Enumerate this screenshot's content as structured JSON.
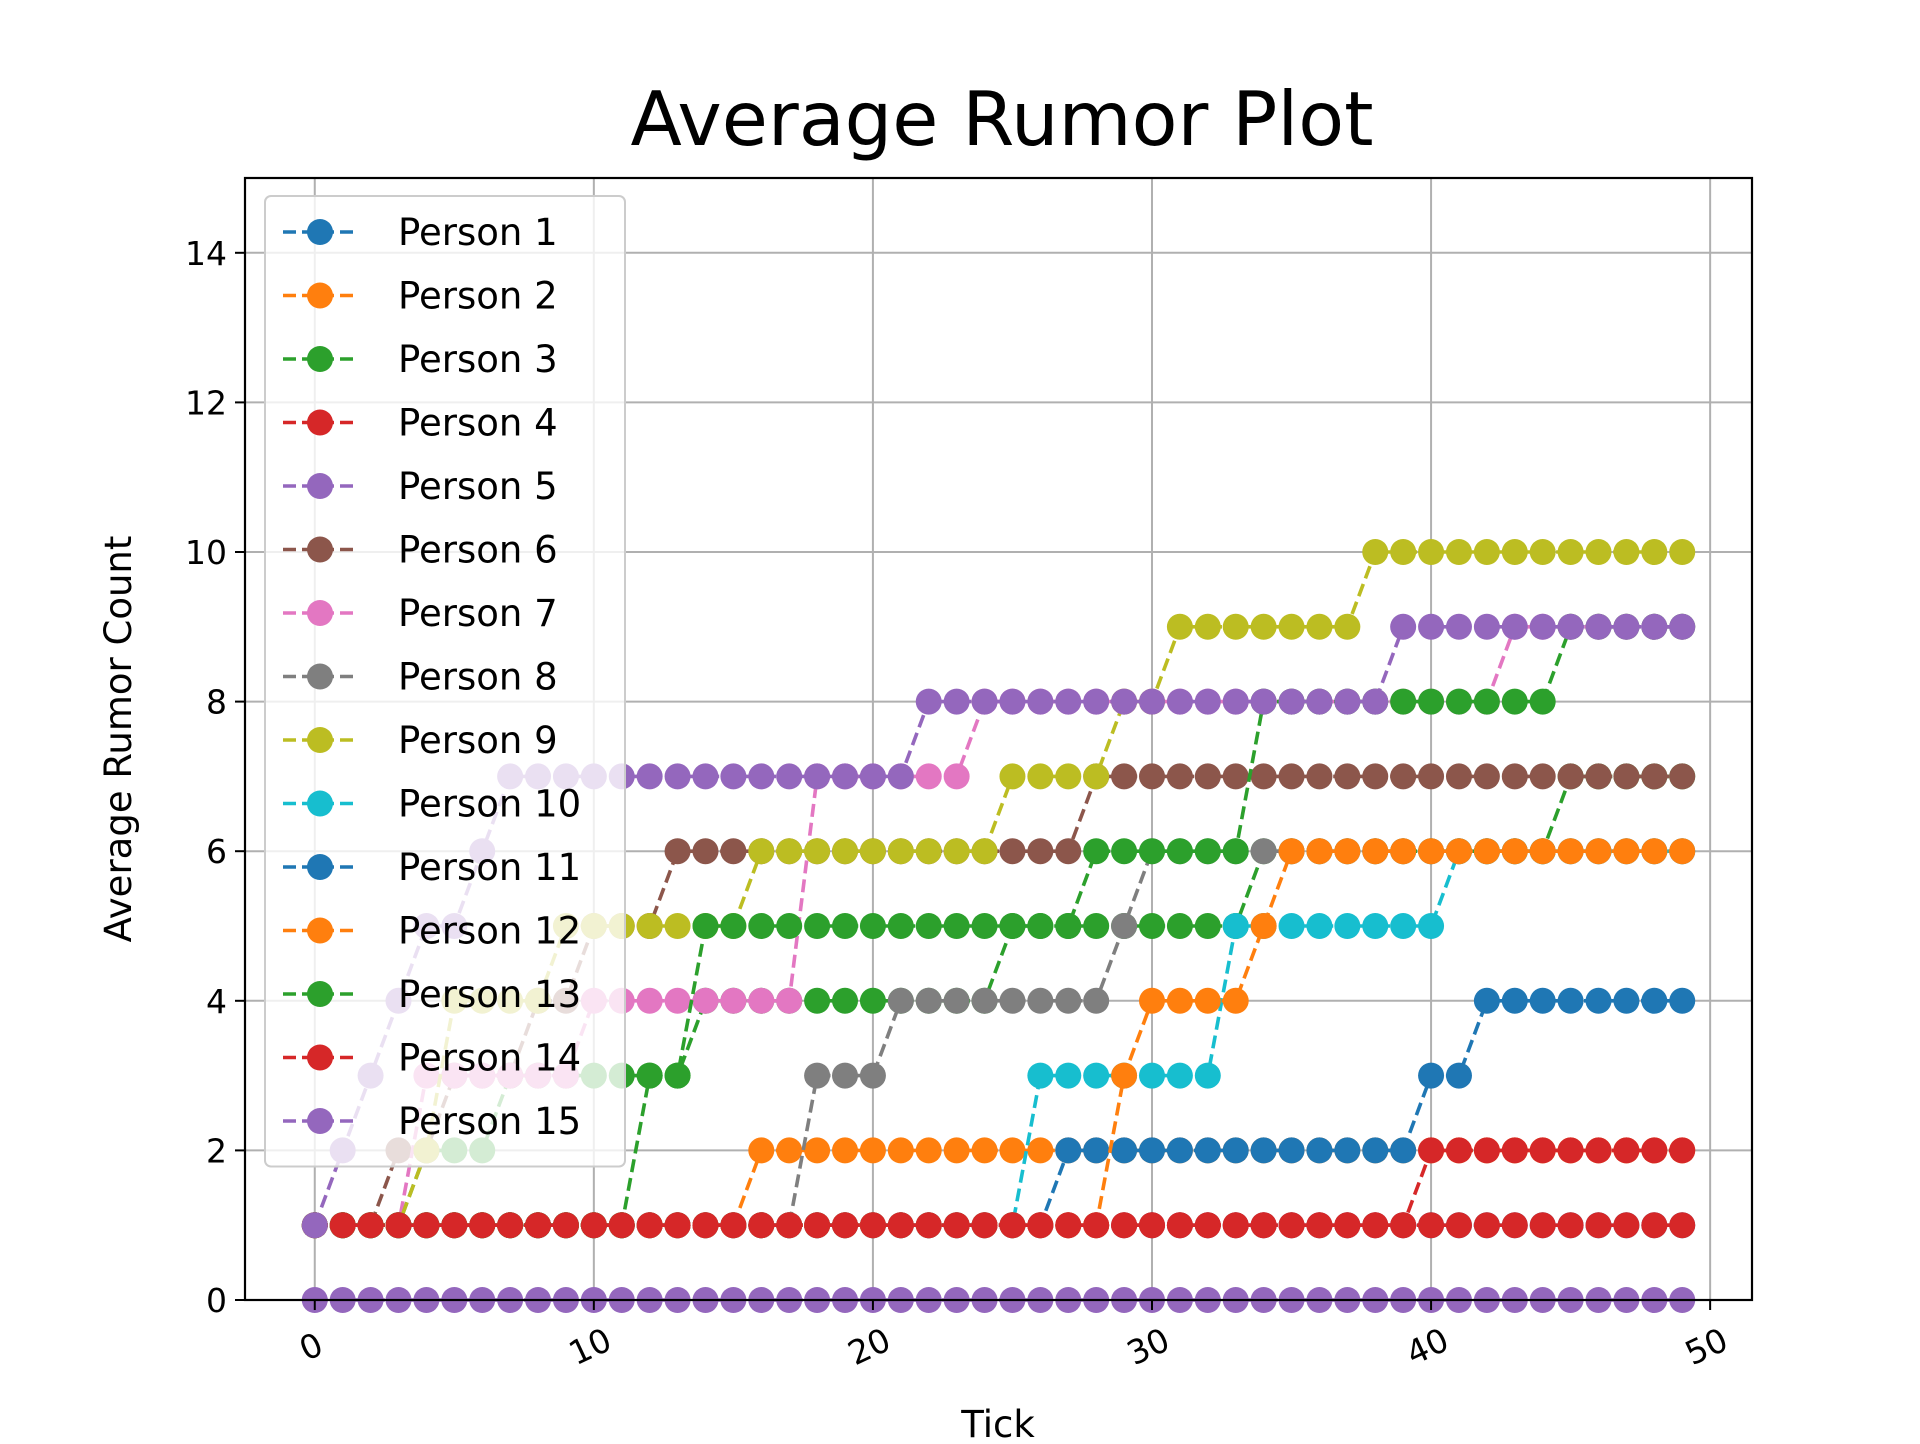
{
  "chart_data": {
    "type": "line",
    "title": "Average Rumor Plot",
    "xlabel": "Tick",
    "ylabel": "Average Rumor Count",
    "xlim": [
      -2.5,
      51.5
    ],
    "ylim": [
      0,
      15
    ],
    "xticks": [
      0,
      10,
      20,
      30,
      40,
      50
    ],
    "xtick_labels": [
      "0",
      "10",
      "20",
      "30",
      "40",
      "50"
    ],
    "yticks": [
      0,
      2,
      4,
      6,
      8,
      10,
      12,
      14
    ],
    "ytick_labels": [
      "0",
      "2",
      "4",
      "6",
      "8",
      "10",
      "12",
      "14"
    ],
    "grid": true,
    "legend_position": "top-left",
    "line_style": "dashed",
    "marker": "circle",
    "x": [
      0,
      1,
      2,
      3,
      4,
      5,
      6,
      7,
      8,
      9,
      10,
      11,
      12,
      13,
      14,
      15,
      16,
      17,
      18,
      19,
      20,
      21,
      22,
      23,
      24,
      25,
      26,
      27,
      28,
      29,
      30,
      31,
      32,
      33,
      34,
      35,
      36,
      37,
      38,
      39,
      40,
      41,
      42,
      43,
      44,
      45,
      46,
      47,
      48,
      49
    ],
    "series": [
      {
        "name": "Person 1",
        "color": "#1f77b4",
        "values": [
          1,
          1,
          1,
          1,
          1,
          1,
          1,
          1,
          1,
          1,
          1,
          1,
          1,
          1,
          1,
          1,
          1,
          1,
          1,
          1,
          1,
          1,
          1,
          1,
          1,
          1,
          1,
          1,
          1,
          1,
          1,
          1,
          1,
          1,
          1,
          1,
          1,
          1,
          1,
          1,
          1,
          1,
          1,
          1,
          1,
          1,
          1,
          1,
          1,
          1
        ]
      },
      {
        "name": "Person 2",
        "color": "#ff7f0e",
        "values": [
          1,
          1,
          1,
          1,
          1,
          1,
          1,
          1,
          1,
          1,
          1,
          1,
          1,
          1,
          1,
          1,
          2,
          2,
          2,
          2,
          2,
          2,
          2,
          2,
          2,
          2,
          2,
          2,
          2,
          2,
          2,
          2,
          2,
          2,
          2,
          2,
          2,
          2,
          2,
          2,
          2,
          2,
          2,
          2,
          2,
          2,
          2,
          2,
          2,
          2
        ]
      },
      {
        "name": "Person 3",
        "color": "#2ca02c",
        "values": [
          1,
          1,
          1,
          1,
          2,
          2,
          2,
          3,
          3,
          3,
          3,
          3,
          3,
          3,
          4,
          4,
          4,
          4,
          4,
          4,
          4,
          4,
          4,
          4,
          4,
          5,
          5,
          5,
          5,
          5,
          5,
          5,
          5,
          5,
          6,
          6,
          6,
          6,
          6,
          6,
          6,
          6,
          6,
          6,
          6,
          7,
          7,
          7,
          7,
          7
        ]
      },
      {
        "name": "Person 4",
        "color": "#d62728",
        "values": [
          1,
          1,
          1,
          1,
          1,
          1,
          1,
          1,
          1,
          1,
          1,
          1,
          1,
          1,
          1,
          1,
          1,
          1,
          1,
          1,
          1,
          1,
          1,
          1,
          1,
          1,
          1,
          1,
          1,
          1,
          1,
          1,
          1,
          1,
          1,
          1,
          1,
          1,
          1,
          1,
          1,
          1,
          1,
          1,
          1,
          1,
          1,
          1,
          1,
          1
        ]
      },
      {
        "name": "Person 5",
        "color": "#9467bd",
        "values": [
          0,
          0,
          0,
          0,
          0,
          0,
          0,
          0,
          0,
          0,
          0,
          0,
          0,
          0,
          0,
          0,
          0,
          0,
          0,
          0,
          0,
          0,
          0,
          0,
          0,
          0,
          0,
          0,
          0,
          0,
          0,
          0,
          0,
          0,
          0,
          0,
          0,
          0,
          0,
          0,
          0,
          0,
          0,
          0,
          0,
          0,
          0,
          0,
          0,
          0
        ]
      },
      {
        "name": "Person 6",
        "color": "#8c564b",
        "values": [
          1,
          1,
          1,
          2,
          2,
          3,
          3,
          3,
          4,
          4,
          5,
          5,
          5,
          6,
          6,
          6,
          6,
          6,
          6,
          6,
          6,
          6,
          6,
          6,
          6,
          6,
          6,
          6,
          7,
          7,
          7,
          7,
          7,
          7,
          7,
          7,
          7,
          7,
          7,
          7,
          7,
          7,
          7,
          7,
          7,
          7,
          7,
          7,
          7,
          7
        ]
      },
      {
        "name": "Person 7",
        "color": "#e377c2",
        "values": [
          1,
          1,
          1,
          1,
          3,
          3,
          3,
          3,
          3,
          3,
          4,
          4,
          4,
          4,
          4,
          4,
          4,
          4,
          7,
          7,
          7,
          7,
          7,
          7,
          8,
          8,
          8,
          8,
          8,
          8,
          8,
          8,
          8,
          8,
          8,
          8,
          8,
          8,
          8,
          8,
          8,
          8,
          8,
          9,
          9,
          9,
          9,
          9,
          9,
          9
        ]
      },
      {
        "name": "Person 8",
        "color": "#7f7f7f",
        "values": [
          1,
          1,
          1,
          1,
          1,
          1,
          1,
          1,
          1,
          1,
          1,
          1,
          1,
          1,
          1,
          1,
          1,
          1,
          3,
          3,
          3,
          4,
          4,
          4,
          4,
          4,
          4,
          4,
          4,
          5,
          6,
          6,
          6,
          6,
          6,
          6,
          6,
          6,
          6,
          6,
          6,
          6,
          6,
          6,
          6,
          6,
          6,
          6,
          6,
          6
        ]
      },
      {
        "name": "Person 9",
        "color": "#bcbd22",
        "values": [
          1,
          1,
          1,
          1,
          2,
          4,
          4,
          4,
          4,
          5,
          5,
          5,
          5,
          5,
          5,
          5,
          6,
          6,
          6,
          6,
          6,
          6,
          6,
          6,
          6,
          7,
          7,
          7,
          7,
          8,
          8,
          9,
          9,
          9,
          9,
          9,
          9,
          9,
          10,
          10,
          10,
          10,
          10,
          10,
          10,
          10,
          10,
          10,
          10,
          10
        ]
      },
      {
        "name": "Person 10",
        "color": "#17becf",
        "values": [
          1,
          1,
          1,
          1,
          1,
          1,
          1,
          1,
          1,
          1,
          1,
          1,
          1,
          1,
          1,
          1,
          1,
          1,
          1,
          1,
          1,
          1,
          1,
          1,
          1,
          1,
          3,
          3,
          3,
          3,
          3,
          3,
          3,
          5,
          5,
          5,
          5,
          5,
          5,
          5,
          5,
          6,
          6,
          6,
          6,
          6,
          6,
          6,
          6,
          6
        ]
      },
      {
        "name": "Person 11",
        "color": "#1f77b4",
        "values": [
          1,
          1,
          1,
          1,
          1,
          1,
          1,
          1,
          1,
          1,
          1,
          1,
          1,
          1,
          1,
          1,
          1,
          1,
          1,
          1,
          1,
          1,
          1,
          1,
          1,
          1,
          1,
          2,
          2,
          2,
          2,
          2,
          2,
          2,
          2,
          2,
          2,
          2,
          2,
          2,
          3,
          3,
          4,
          4,
          4,
          4,
          4,
          4,
          4,
          4
        ]
      },
      {
        "name": "Person 12",
        "color": "#ff7f0e",
        "values": [
          1,
          1,
          1,
          1,
          1,
          1,
          1,
          1,
          1,
          1,
          1,
          1,
          1,
          1,
          1,
          1,
          1,
          1,
          1,
          1,
          1,
          1,
          1,
          1,
          1,
          1,
          1,
          1,
          1,
          3,
          4,
          4,
          4,
          4,
          5,
          6,
          6,
          6,
          6,
          6,
          6,
          6,
          6,
          6,
          6,
          6,
          6,
          6,
          6,
          6
        ]
      },
      {
        "name": "Person 13",
        "color": "#2ca02c",
        "values": [
          1,
          1,
          1,
          1,
          1,
          1,
          1,
          1,
          1,
          1,
          1,
          1,
          3,
          3,
          5,
          5,
          5,
          5,
          5,
          5,
          5,
          5,
          5,
          5,
          5,
          5,
          5,
          5,
          6,
          6,
          6,
          6,
          6,
          6,
          8,
          8,
          8,
          8,
          8,
          8,
          8,
          8,
          8,
          8,
          8,
          9,
          9,
          9,
          9,
          9
        ]
      },
      {
        "name": "Person 14",
        "color": "#d62728",
        "values": [
          1,
          1,
          1,
          1,
          1,
          1,
          1,
          1,
          1,
          1,
          1,
          1,
          1,
          1,
          1,
          1,
          1,
          1,
          1,
          1,
          1,
          1,
          1,
          1,
          1,
          1,
          1,
          1,
          1,
          1,
          1,
          1,
          1,
          1,
          1,
          1,
          1,
          1,
          1,
          1,
          2,
          2,
          2,
          2,
          2,
          2,
          2,
          2,
          2,
          2
        ]
      },
      {
        "name": "Person 15",
        "color": "#9467bd",
        "values": [
          1,
          2,
          3,
          4,
          5,
          5,
          6,
          7,
          7,
          7,
          7,
          7,
          7,
          7,
          7,
          7,
          7,
          7,
          7,
          7,
          7,
          7,
          8,
          8,
          8,
          8,
          8,
          8,
          8,
          8,
          8,
          8,
          8,
          8,
          8,
          8,
          8,
          8,
          8,
          9,
          9,
          9,
          9,
          9,
          9,
          9,
          9,
          9,
          9,
          9
        ]
      }
    ]
  }
}
